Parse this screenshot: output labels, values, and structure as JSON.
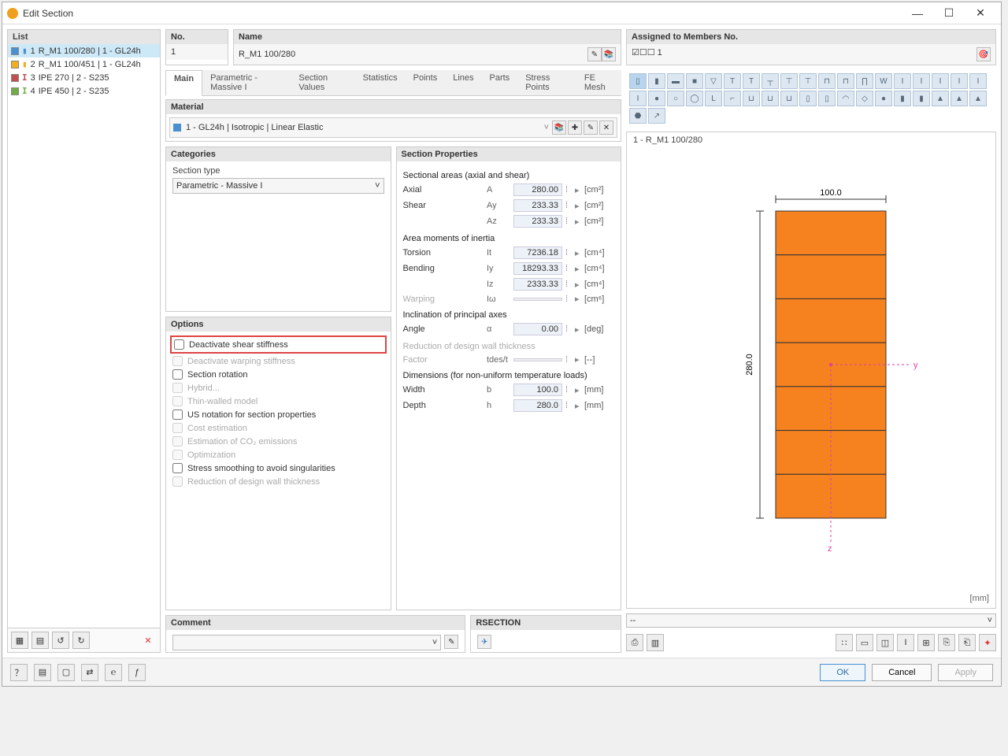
{
  "window": {
    "title": "Edit Section"
  },
  "list": {
    "header": "List",
    "items": [
      {
        "n": "1",
        "label": "R_M1 100/280 | 1 - GL24h",
        "color": "#4a90d0",
        "ibeam_color": "#4a90d0",
        "ibeam": "▮",
        "selected": true
      },
      {
        "n": "2",
        "label": "R_M1 100/451 | 1 - GL24h",
        "color": "#f0b020",
        "ibeam_color": "#f0b020",
        "ibeam": "▮"
      },
      {
        "n": "3",
        "label": "IPE 270 | 2 - S235",
        "color": "#c0504d",
        "ibeam_color": "#c0504d",
        "ibeam": "I"
      },
      {
        "n": "4",
        "label": "IPE 450 | 2 - S235",
        "color": "#70ad47",
        "ibeam_color": "#70ad47",
        "ibeam": "I"
      }
    ]
  },
  "fields": {
    "no_label": "No.",
    "no": "1",
    "name_label": "Name",
    "name": "R_M1 100/280",
    "assigned_label": "Assigned to Members No.",
    "assigned": "☑☐☐ 1"
  },
  "tabs": [
    "Main",
    "Parametric - Massive I",
    "Section Values",
    "Statistics",
    "Points",
    "Lines",
    "Parts",
    "Stress Points",
    "FE Mesh"
  ],
  "material": {
    "header": "Material",
    "value": "1 - GL24h | Isotropic | Linear Elastic"
  },
  "categories": {
    "header": "Categories",
    "type_label": "Section type",
    "type": "Parametric - Massive I"
  },
  "options": {
    "header": "Options",
    "items": [
      {
        "label": "Deactivate shear stiffness",
        "disabled": false,
        "highlight": true
      },
      {
        "label": "Deactivate warping stiffness",
        "disabled": true
      },
      {
        "label": "Section rotation",
        "disabled": false
      },
      {
        "label": "Hybrid...",
        "disabled": true
      },
      {
        "label": "Thin-walled model",
        "disabled": true
      },
      {
        "label": "US notation for section properties",
        "disabled": false
      },
      {
        "label": "Cost estimation",
        "disabled": true
      },
      {
        "label": "Estimation of CO₂ emissions",
        "disabled": true
      },
      {
        "label": "Optimization",
        "disabled": true
      },
      {
        "label": "Stress smoothing to avoid singularities",
        "disabled": false
      },
      {
        "label": "Reduction of design wall thickness",
        "disabled": true
      }
    ]
  },
  "props": {
    "header": "Section Properties",
    "groups": [
      {
        "title": "Sectional areas (axial and shear)",
        "rows": [
          {
            "label": "Axial",
            "sym": "A",
            "val": "280.00",
            "unit": "[cm²]"
          },
          {
            "label": "Shear",
            "sym": "Ay",
            "val": "233.33",
            "unit": "[cm²]"
          },
          {
            "label": "",
            "sym": "Az",
            "val": "233.33",
            "unit": "[cm²]"
          }
        ]
      },
      {
        "title": "Area moments of inertia",
        "rows": [
          {
            "label": "Torsion",
            "sym": "It",
            "val": "7236.18",
            "unit": "[cm⁴]"
          },
          {
            "label": "Bending",
            "sym": "Iy",
            "val": "18293.33",
            "unit": "[cm⁴]"
          },
          {
            "label": "",
            "sym": "Iz",
            "val": "2333.33",
            "unit": "[cm⁴]"
          },
          {
            "label": "Warping",
            "sym": "Iω",
            "val": "",
            "unit": "[cm⁶]",
            "disabled": true
          }
        ]
      },
      {
        "title": "Inclination of principal axes",
        "rows": [
          {
            "label": "Angle",
            "sym": "α",
            "val": "0.00",
            "unit": "[deg]"
          }
        ]
      },
      {
        "title": "Reduction of design wall thickness",
        "disabled": true,
        "rows": [
          {
            "label": "Factor",
            "sym": "tdes/t",
            "val": "",
            "unit": "[--]",
            "disabled": true
          }
        ]
      },
      {
        "title": "Dimensions (for non-uniform temperature loads)",
        "rows": [
          {
            "label": "Width",
            "sym": "b",
            "val": "100.0",
            "unit": "[mm]"
          },
          {
            "label": "Depth",
            "sym": "h",
            "val": "280.0",
            "unit": "[mm]"
          }
        ]
      }
    ]
  },
  "preview": {
    "title": "1 - R_M1 100/280",
    "width_label": "100.0",
    "height_label": "280.0",
    "rect_w": 140,
    "rect_h": 390,
    "segments": 7,
    "fill": "#f5821f",
    "stroke": "#333",
    "axis_color": "#e040a0",
    "unit": "[mm]"
  },
  "comment": {
    "header": "Comment"
  },
  "rsection": {
    "header": "RSECTION"
  },
  "buttons": {
    "ok": "OK",
    "cancel": "Cancel",
    "apply": "Apply"
  }
}
